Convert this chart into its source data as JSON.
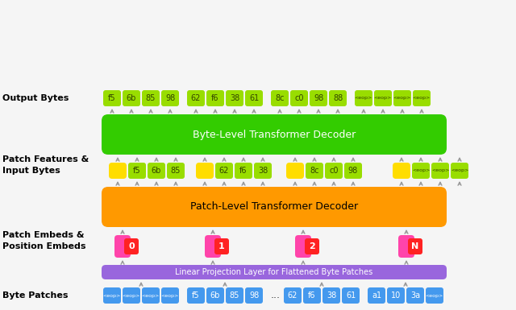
{
  "bg_color": "#f5f5f5",
  "colors": {
    "green_dark": "#33cc00",
    "green_light": "#99dd00",
    "orange": "#ff9900",
    "yellow": "#ffdd00",
    "purple": "#9966dd",
    "pink": "#ff44aa",
    "red": "#ff2222",
    "blue": "#4499ee",
    "arrow": "#999999"
  },
  "output_bytes": [
    "f5",
    "6b",
    "85",
    "98",
    "62",
    "f6",
    "38",
    "61",
    "8c",
    "c0",
    "98",
    "88",
    "<eop>",
    "<eop>",
    "<eop>",
    "<eop>"
  ],
  "patch_features_groups": [
    [
      "f5",
      "6b",
      "85"
    ],
    [
      "62",
      "f6",
      "38"
    ],
    [
      "8c",
      "c0",
      "98"
    ],
    [
      "<eop>",
      "<eop>",
      "<eop>"
    ]
  ],
  "patch_embeds": [
    "0",
    "1",
    "2",
    "N"
  ],
  "byte_patch_groups": [
    [
      "<eop>",
      "<eop>",
      "<eop>",
      "<eop>"
    ],
    [
      "f5",
      "6b",
      "85",
      "98"
    ],
    [
      "62",
      "f6",
      "38",
      "61"
    ],
    [
      "a1",
      "10",
      "3a",
      "<eop>"
    ]
  ],
  "lp_text": "Linear Projection Layer for Flattened Byte Patches",
  "plt_text": "Patch-Level Transformer Decoder",
  "blt_text": "Byte-Level Transformer Decoder",
  "label_output": "Output Bytes",
  "label_patch_feat": "Patch Features &\nInput Bytes",
  "label_patch_emb": "Patch Embeds &\nPosition Embeds",
  "label_byte": "Byte Patches"
}
